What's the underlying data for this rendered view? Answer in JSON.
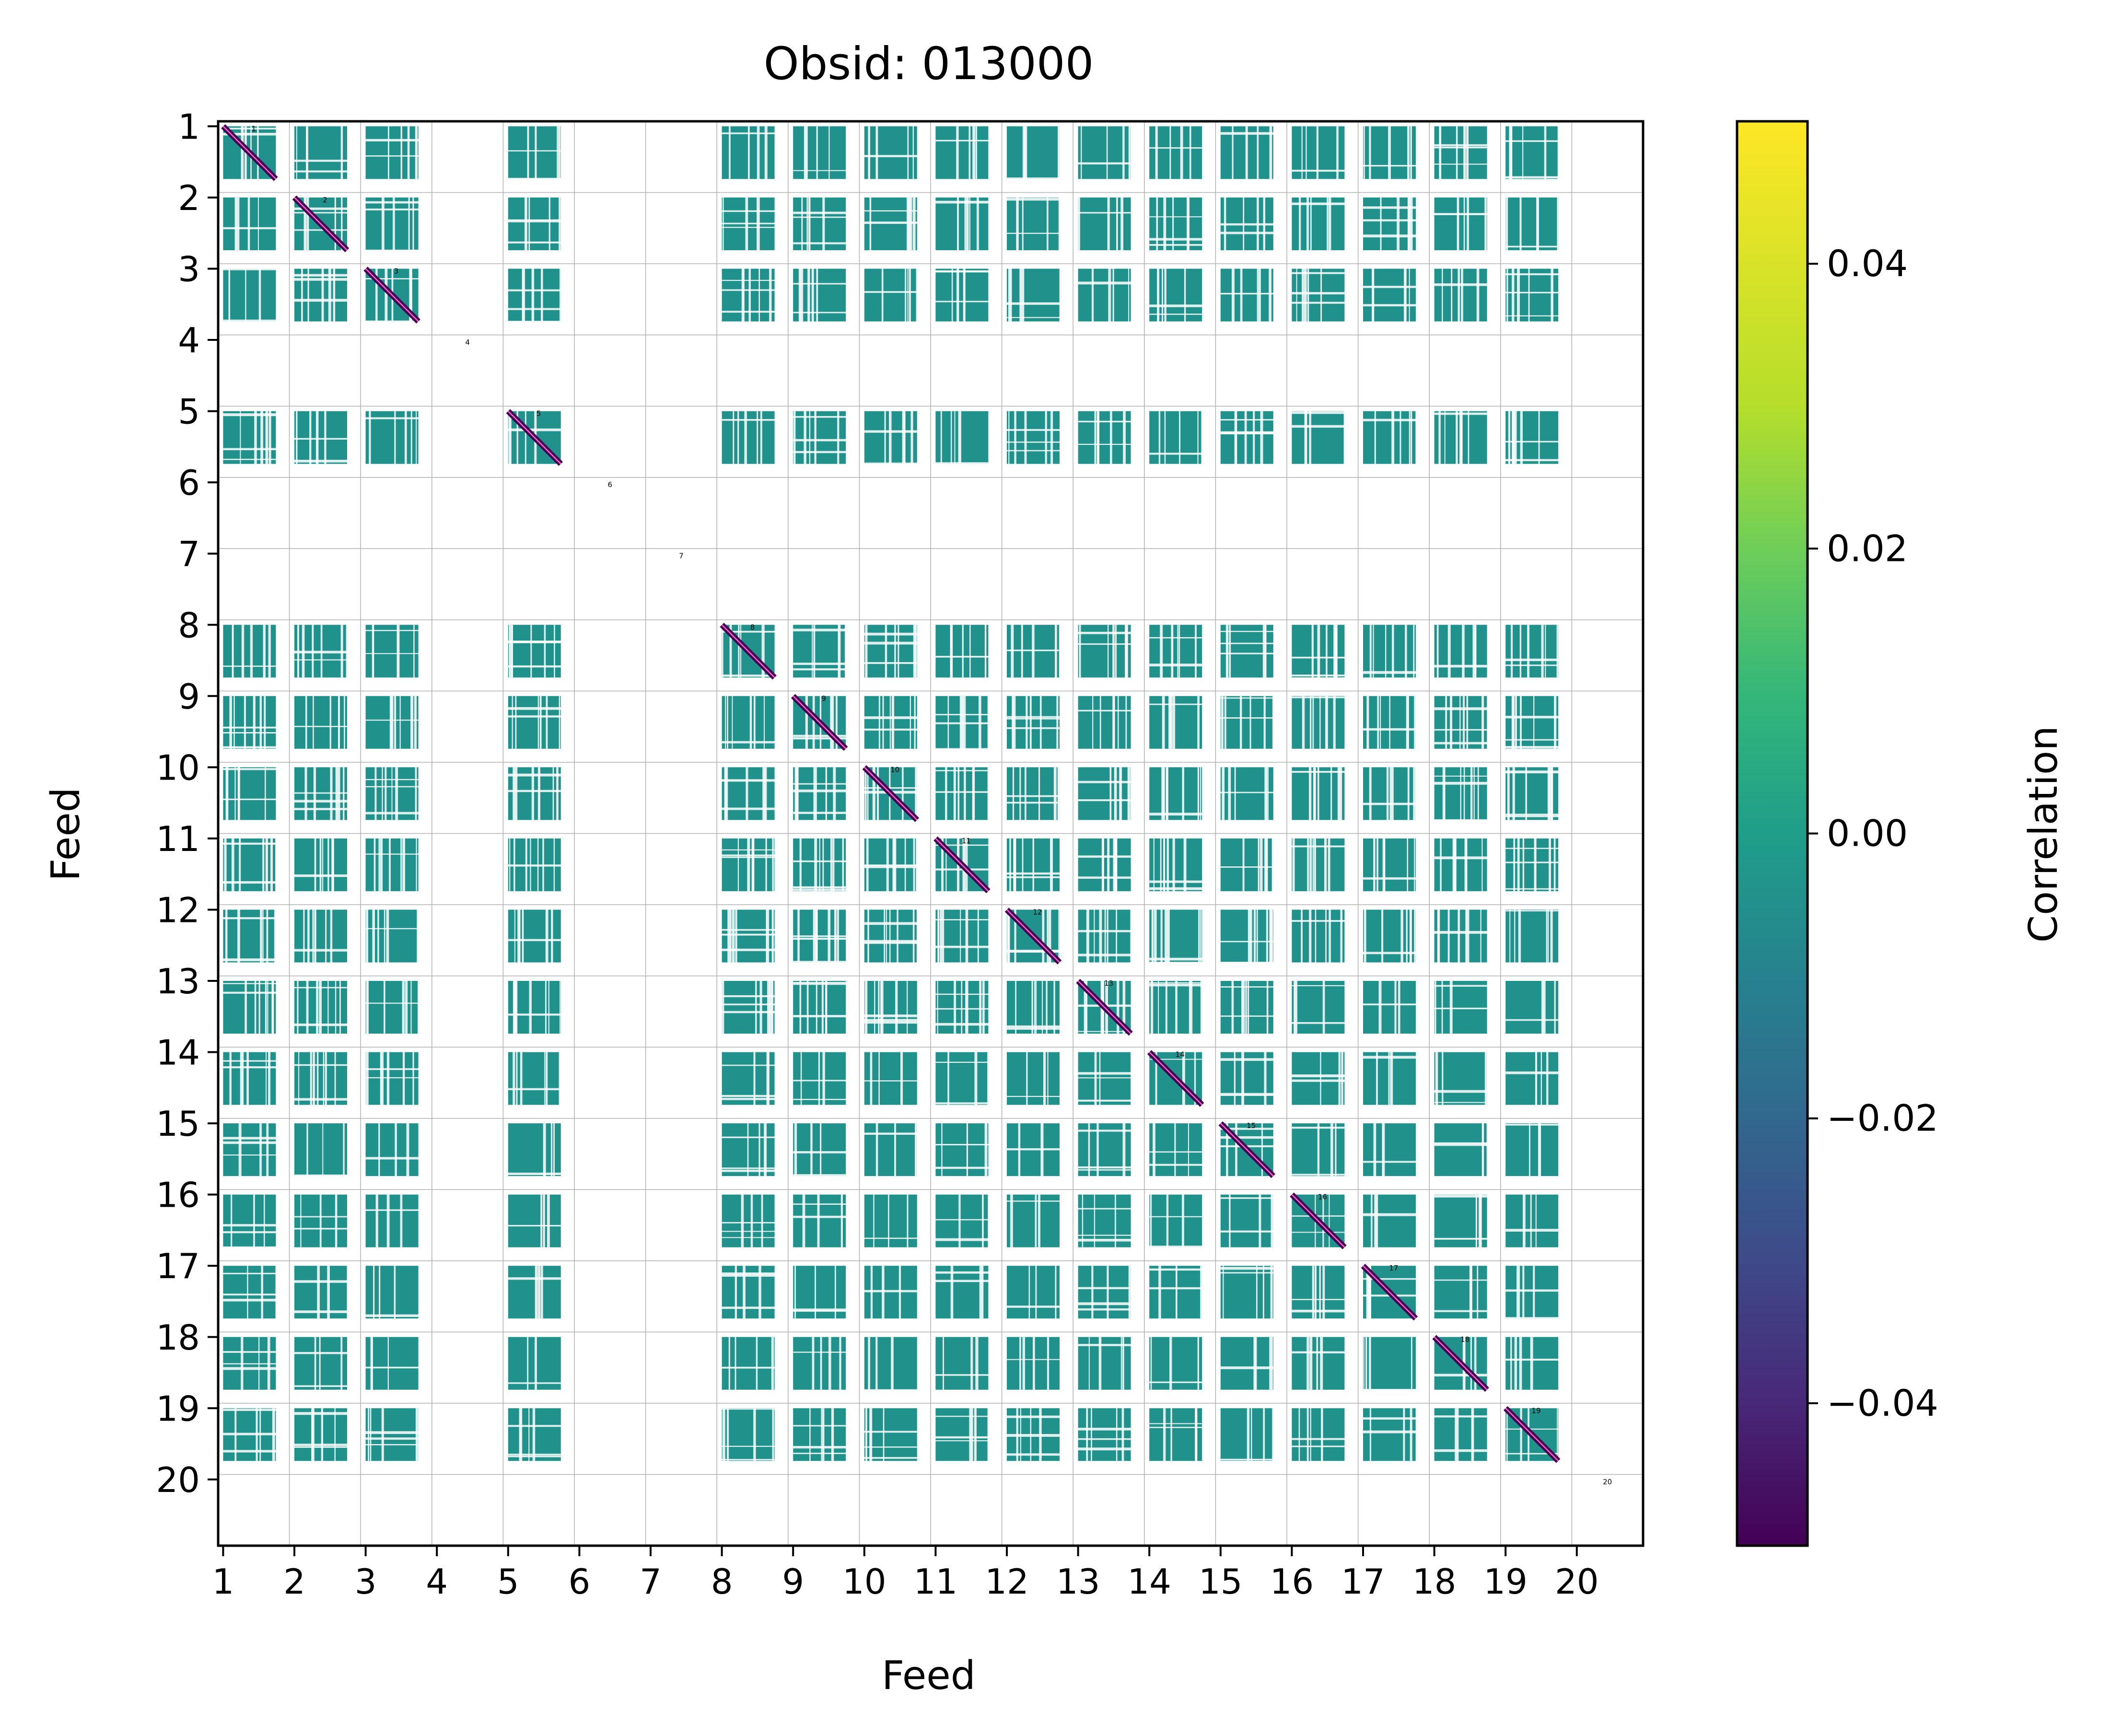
{
  "chart_data": {
    "type": "heatmap",
    "title": "Obsid: 013000",
    "xlabel": "Feed",
    "ylabel": "Feed",
    "feeds": [
      1,
      2,
      3,
      4,
      5,
      6,
      7,
      8,
      9,
      10,
      11,
      12,
      13,
      14,
      15,
      16,
      17,
      18,
      19,
      20
    ],
    "active_feeds": [
      1,
      2,
      3,
      5,
      8,
      9,
      10,
      11,
      12,
      13,
      14,
      15,
      16,
      17,
      18,
      19
    ],
    "empty_feeds": [
      4,
      6,
      7,
      20
    ],
    "x_tick_labels": [
      "1",
      "2",
      "3",
      "4",
      "5",
      "6",
      "7",
      "8",
      "9",
      "10",
      "11",
      "12",
      "13",
      "14",
      "15",
      "16",
      "17",
      "18",
      "19",
      "20"
    ],
    "y_tick_labels": [
      "1",
      "2",
      "3",
      "4",
      "5",
      "6",
      "7",
      "8",
      "9",
      "10",
      "11",
      "12",
      "13",
      "14",
      "15",
      "16",
      "17",
      "18",
      "19",
      "20"
    ],
    "diagonal_labels": [
      "1",
      "2",
      "3",
      "4",
      "5",
      "6",
      "7",
      "8",
      "9",
      "10",
      "11",
      "12",
      "13",
      "14",
      "15",
      "16",
      "17",
      "18",
      "19",
      "20"
    ],
    "off_diagonal_value": 0.0,
    "diagonal_value": -0.05,
    "colorbar": {
      "label": "Correlation",
      "colormap": "viridis",
      "vmin": -0.05,
      "vmax": 0.05,
      "tick_values": [
        -0.04,
        -0.02,
        0.0,
        0.02,
        0.04
      ],
      "tick_labels": [
        "−0.04",
        "−0.02",
        "0.00",
        "0.02",
        "0.04"
      ]
    },
    "colors": {
      "zero": "#21918c",
      "diagonal": "#440154",
      "grid": "#b0b0b0",
      "diagonal_line": "#ff66cc"
    }
  }
}
